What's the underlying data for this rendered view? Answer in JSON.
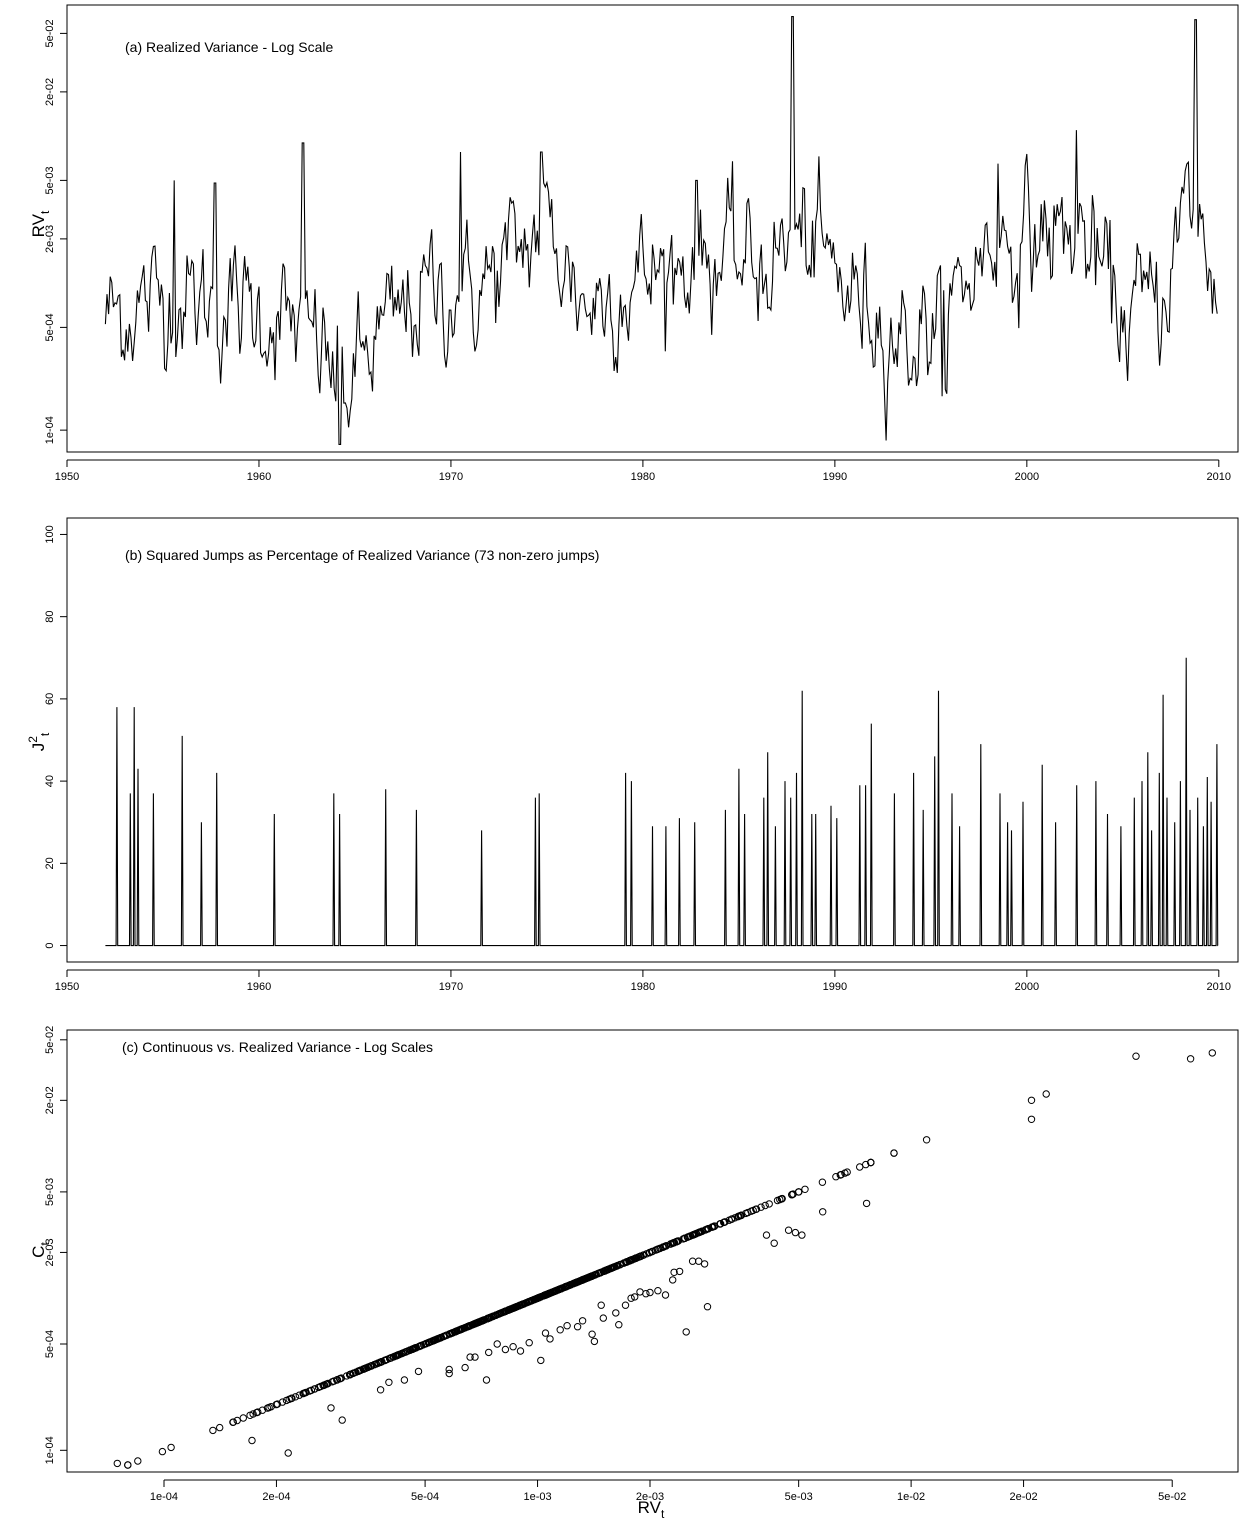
{
  "chart_data": [
    {
      "type": "line",
      "title": "(a) Realized Variance - Log Scale",
      "ylabel": "RV",
      "ylabel_sub": "t",
      "xlabel": "",
      "yscale": "log",
      "xlim": [
        1950,
        2011
      ],
      "ylim": [
        7.1e-05,
        0.078
      ],
      "xticks": [
        1950,
        1960,
        1970,
        1980,
        1990,
        2000,
        2010
      ],
      "yticks": [
        {
          "value": 0.0001,
          "label": "1e-04"
        },
        {
          "value": 0.0005,
          "label": "5e-04"
        },
        {
          "value": 0.002,
          "label": "2e-03"
        },
        {
          "value": 0.005,
          "label": "5e-03"
        },
        {
          "value": 0.02,
          "label": "2e-02"
        },
        {
          "value": 0.05,
          "label": "5e-02"
        }
      ],
      "grid": false,
      "series_generated": "monthly 1952-2009, log-level random walk with spikes",
      "spikes": [
        {
          "x": 1955.6,
          "y": 0.005
        },
        {
          "x": 1957.7,
          "y": 0.0048
        },
        {
          "x": 1962.3,
          "y": 0.009
        },
        {
          "x": 1970.5,
          "y": 0.0078
        },
        {
          "x": 1974.7,
          "y": 0.0078
        },
        {
          "x": 1982.8,
          "y": 0.005
        },
        {
          "x": 1987.8,
          "y": 0.065
        },
        {
          "x": 1998.5,
          "y": 0.0065
        },
        {
          "x": 2002.6,
          "y": 0.011
        },
        {
          "x": 2008.8,
          "y": 0.062
        }
      ],
      "troughs": [
        {
          "x": 1964.2,
          "y": 8e-05
        },
        {
          "x": 1995.6,
          "y": 0.00017
        }
      ]
    },
    {
      "type": "line",
      "title": "(b) Squared Jumps as Percentage of Realized Variance (73 non-zero jumps)",
      "ylabel": "J",
      "ylabel_sup": "2",
      "ylabel_sub": "t",
      "xlabel": "",
      "xlim": [
        1950,
        2011
      ],
      "ylim": [
        -4,
        104
      ],
      "xticks": [
        1950,
        1960,
        1970,
        1980,
        1990,
        2000,
        2010
      ],
      "yticks": [
        0,
        20,
        40,
        60,
        80,
        100
      ],
      "grid": false,
      "nonzero_count": 73,
      "jumps": [
        {
          "x": 1952.6,
          "y": 58
        },
        {
          "x": 1953.3,
          "y": 37
        },
        {
          "x": 1953.5,
          "y": 58
        },
        {
          "x": 1953.7,
          "y": 43
        },
        {
          "x": 1954.5,
          "y": 37
        },
        {
          "x": 1956.0,
          "y": 51
        },
        {
          "x": 1957.0,
          "y": 30
        },
        {
          "x": 1957.8,
          "y": 42
        },
        {
          "x": 1960.8,
          "y": 32
        },
        {
          "x": 1963.9,
          "y": 37
        },
        {
          "x": 1964.2,
          "y": 32
        },
        {
          "x": 1966.6,
          "y": 38
        },
        {
          "x": 1968.2,
          "y": 33
        },
        {
          "x": 1971.6,
          "y": 28
        },
        {
          "x": 1974.4,
          "y": 36
        },
        {
          "x": 1974.6,
          "y": 37
        },
        {
          "x": 1979.1,
          "y": 42
        },
        {
          "x": 1979.4,
          "y": 40
        },
        {
          "x": 1980.5,
          "y": 29
        },
        {
          "x": 1981.2,
          "y": 29
        },
        {
          "x": 1981.9,
          "y": 31
        },
        {
          "x": 1982.7,
          "y": 30
        },
        {
          "x": 1984.3,
          "y": 33
        },
        {
          "x": 1985.0,
          "y": 43
        },
        {
          "x": 1985.3,
          "y": 32
        },
        {
          "x": 1986.3,
          "y": 36
        },
        {
          "x": 1986.5,
          "y": 47
        },
        {
          "x": 1986.9,
          "y": 29
        },
        {
          "x": 1987.4,
          "y": 40
        },
        {
          "x": 1987.7,
          "y": 36
        },
        {
          "x": 1988.0,
          "y": 42
        },
        {
          "x": 1988.3,
          "y": 62
        },
        {
          "x": 1988.8,
          "y": 32
        },
        {
          "x": 1989.0,
          "y": 32
        },
        {
          "x": 1989.8,
          "y": 34
        },
        {
          "x": 1990.1,
          "y": 31
        },
        {
          "x": 1991.3,
          "y": 39
        },
        {
          "x": 1991.6,
          "y": 39
        },
        {
          "x": 1991.9,
          "y": 54
        },
        {
          "x": 1993.1,
          "y": 37
        },
        {
          "x": 1994.1,
          "y": 42
        },
        {
          "x": 1994.6,
          "y": 33
        },
        {
          "x": 1995.2,
          "y": 46
        },
        {
          "x": 1995.4,
          "y": 62
        },
        {
          "x": 1996.1,
          "y": 37
        },
        {
          "x": 1997.6,
          "y": 49
        },
        {
          "x": 1998.6,
          "y": 37
        },
        {
          "x": 1999.2,
          "y": 28
        },
        {
          "x": 1999.8,
          "y": 35
        },
        {
          "x": 2000.8,
          "y": 44
        },
        {
          "x": 2001.5,
          "y": 30
        },
        {
          "x": 2002.6,
          "y": 39
        },
        {
          "x": 2003.6,
          "y": 40
        },
        {
          "x": 2004.2,
          "y": 32
        },
        {
          "x": 2004.9,
          "y": 29
        },
        {
          "x": 2005.6,
          "y": 36
        },
        {
          "x": 2006.0,
          "y": 40
        },
        {
          "x": 2006.3,
          "y": 47
        },
        {
          "x": 2006.5,
          "y": 28
        },
        {
          "x": 2006.9,
          "y": 42
        },
        {
          "x": 2007.1,
          "y": 61
        },
        {
          "x": 2007.3,
          "y": 36
        },
        {
          "x": 2007.7,
          "y": 30
        },
        {
          "x": 2008.0,
          "y": 40
        },
        {
          "x": 2008.3,
          "y": 70
        },
        {
          "x": 2008.5,
          "y": 33
        },
        {
          "x": 2008.9,
          "y": 36
        },
        {
          "x": 2009.2,
          "y": 29
        },
        {
          "x": 2009.4,
          "y": 41
        },
        {
          "x": 2009.6,
          "y": 35
        },
        {
          "x": 2009.9,
          "y": 49
        },
        {
          "x": 1999.0,
          "y": 30
        },
        {
          "x": 1996.5,
          "y": 29
        }
      ]
    },
    {
      "type": "scatter",
      "title": "(c) Continuous vs. Realized Variance - Log Scales",
      "xlabel": "RV",
      "xlabel_sub": "t",
      "ylabel": "C",
      "ylabel_sub": "t",
      "xscale": "log",
      "yscale": "log",
      "xlim": [
        5.5e-05,
        0.075
      ],
      "ylim": [
        7.2e-05,
        0.058
      ],
      "xticks": [
        {
          "value": 0.0001,
          "label": "1e-04"
        },
        {
          "value": 0.0002,
          "label": "2e-04"
        },
        {
          "value": 0.0005,
          "label": "5e-04"
        },
        {
          "value": 0.001,
          "label": "1e-03"
        },
        {
          "value": 0.002,
          "label": "2e-03"
        },
        {
          "value": 0.005,
          "label": "5e-03"
        },
        {
          "value": 0.01,
          "label": "1e-02"
        },
        {
          "value": 0.02,
          "label": "2e-02"
        },
        {
          "value": 0.05,
          "label": "5e-02"
        }
      ],
      "yticks": [
        {
          "value": 0.0001,
          "label": "1e-04"
        },
        {
          "value": 0.0005,
          "label": "5e-04"
        },
        {
          "value": 0.002,
          "label": "2e-03"
        },
        {
          "value": 0.005,
          "label": "5e-03"
        },
        {
          "value": 0.02,
          "label": "2e-02"
        },
        {
          "value": 0.05,
          "label": "5e-02"
        }
      ],
      "marker": "open-circle",
      "grid": false,
      "points_on_diagonal": "most months C = RV",
      "off_diagonal_points": [
        [
          7.5e-05,
          8.2e-05
        ],
        [
          9.9e-05,
          9.8e-05
        ],
        [
          0.000172,
          0.000116
        ],
        [
          0.000215,
          9.6e-05
        ],
        [
          0.00028,
          0.00019
        ],
        [
          0.0003,
          0.000158
        ],
        [
          0.00038,
          0.00025
        ],
        [
          0.0004,
          0.00028
        ],
        [
          0.00044,
          0.00029
        ],
        [
          0.00048,
          0.00033
        ],
        [
          0.00058,
          0.00032
        ],
        [
          0.00058,
          0.00034
        ],
        [
          0.00064,
          0.00035
        ],
        [
          0.00066,
          0.00041
        ],
        [
          0.00068,
          0.00041
        ],
        [
          0.00073,
          0.00029
        ],
        [
          0.00074,
          0.00044
        ],
        [
          0.00078,
          0.0005
        ],
        [
          0.00082,
          0.00046
        ],
        [
          0.00086,
          0.00048
        ],
        [
          0.0009,
          0.00045
        ],
        [
          0.00095,
          0.00051
        ],
        [
          0.00102,
          0.00039
        ],
        [
          0.00105,
          0.00059
        ],
        [
          0.00108,
          0.00054
        ],
        [
          0.00115,
          0.00062
        ],
        [
          0.0012,
          0.00066
        ],
        [
          0.00128,
          0.00065
        ],
        [
          0.00132,
          0.00071
        ],
        [
          0.0014,
          0.00058
        ],
        [
          0.00142,
          0.00052
        ],
        [
          0.00148,
          0.0009
        ],
        [
          0.0015,
          0.00074
        ],
        [
          0.00162,
          0.0008
        ],
        [
          0.00165,
          0.00067
        ],
        [
          0.00172,
          0.0009
        ],
        [
          0.00178,
          0.001
        ],
        [
          0.00182,
          0.00102
        ],
        [
          0.00188,
          0.0011
        ],
        [
          0.00195,
          0.00107
        ],
        [
          0.002,
          0.00109
        ],
        [
          0.0021,
          0.00112
        ],
        [
          0.0022,
          0.00105
        ],
        [
          0.0023,
          0.00132
        ],
        [
          0.00232,
          0.00148
        ],
        [
          0.0024,
          0.0015
        ],
        [
          0.0025,
          0.0006
        ],
        [
          0.0026,
          0.00175
        ],
        [
          0.0027,
          0.00175
        ],
        [
          0.0028,
          0.00168
        ],
        [
          0.00285,
          0.00088
        ],
        [
          0.0041,
          0.0026
        ],
        [
          0.0043,
          0.0023
        ],
        [
          0.0047,
          0.0028
        ],
        [
          0.0049,
          0.0027
        ],
        [
          0.0051,
          0.0026
        ],
        [
          0.0058,
          0.0037
        ],
        [
          0.0076,
          0.0042
        ],
        [
          0.021,
          0.015
        ],
        [
          0.021,
          0.02
        ],
        [
          0.023,
          0.022
        ],
        [
          0.04,
          0.039
        ],
        [
          0.056,
          0.0375
        ],
        [
          0.064,
          0.041
        ]
      ]
    }
  ]
}
